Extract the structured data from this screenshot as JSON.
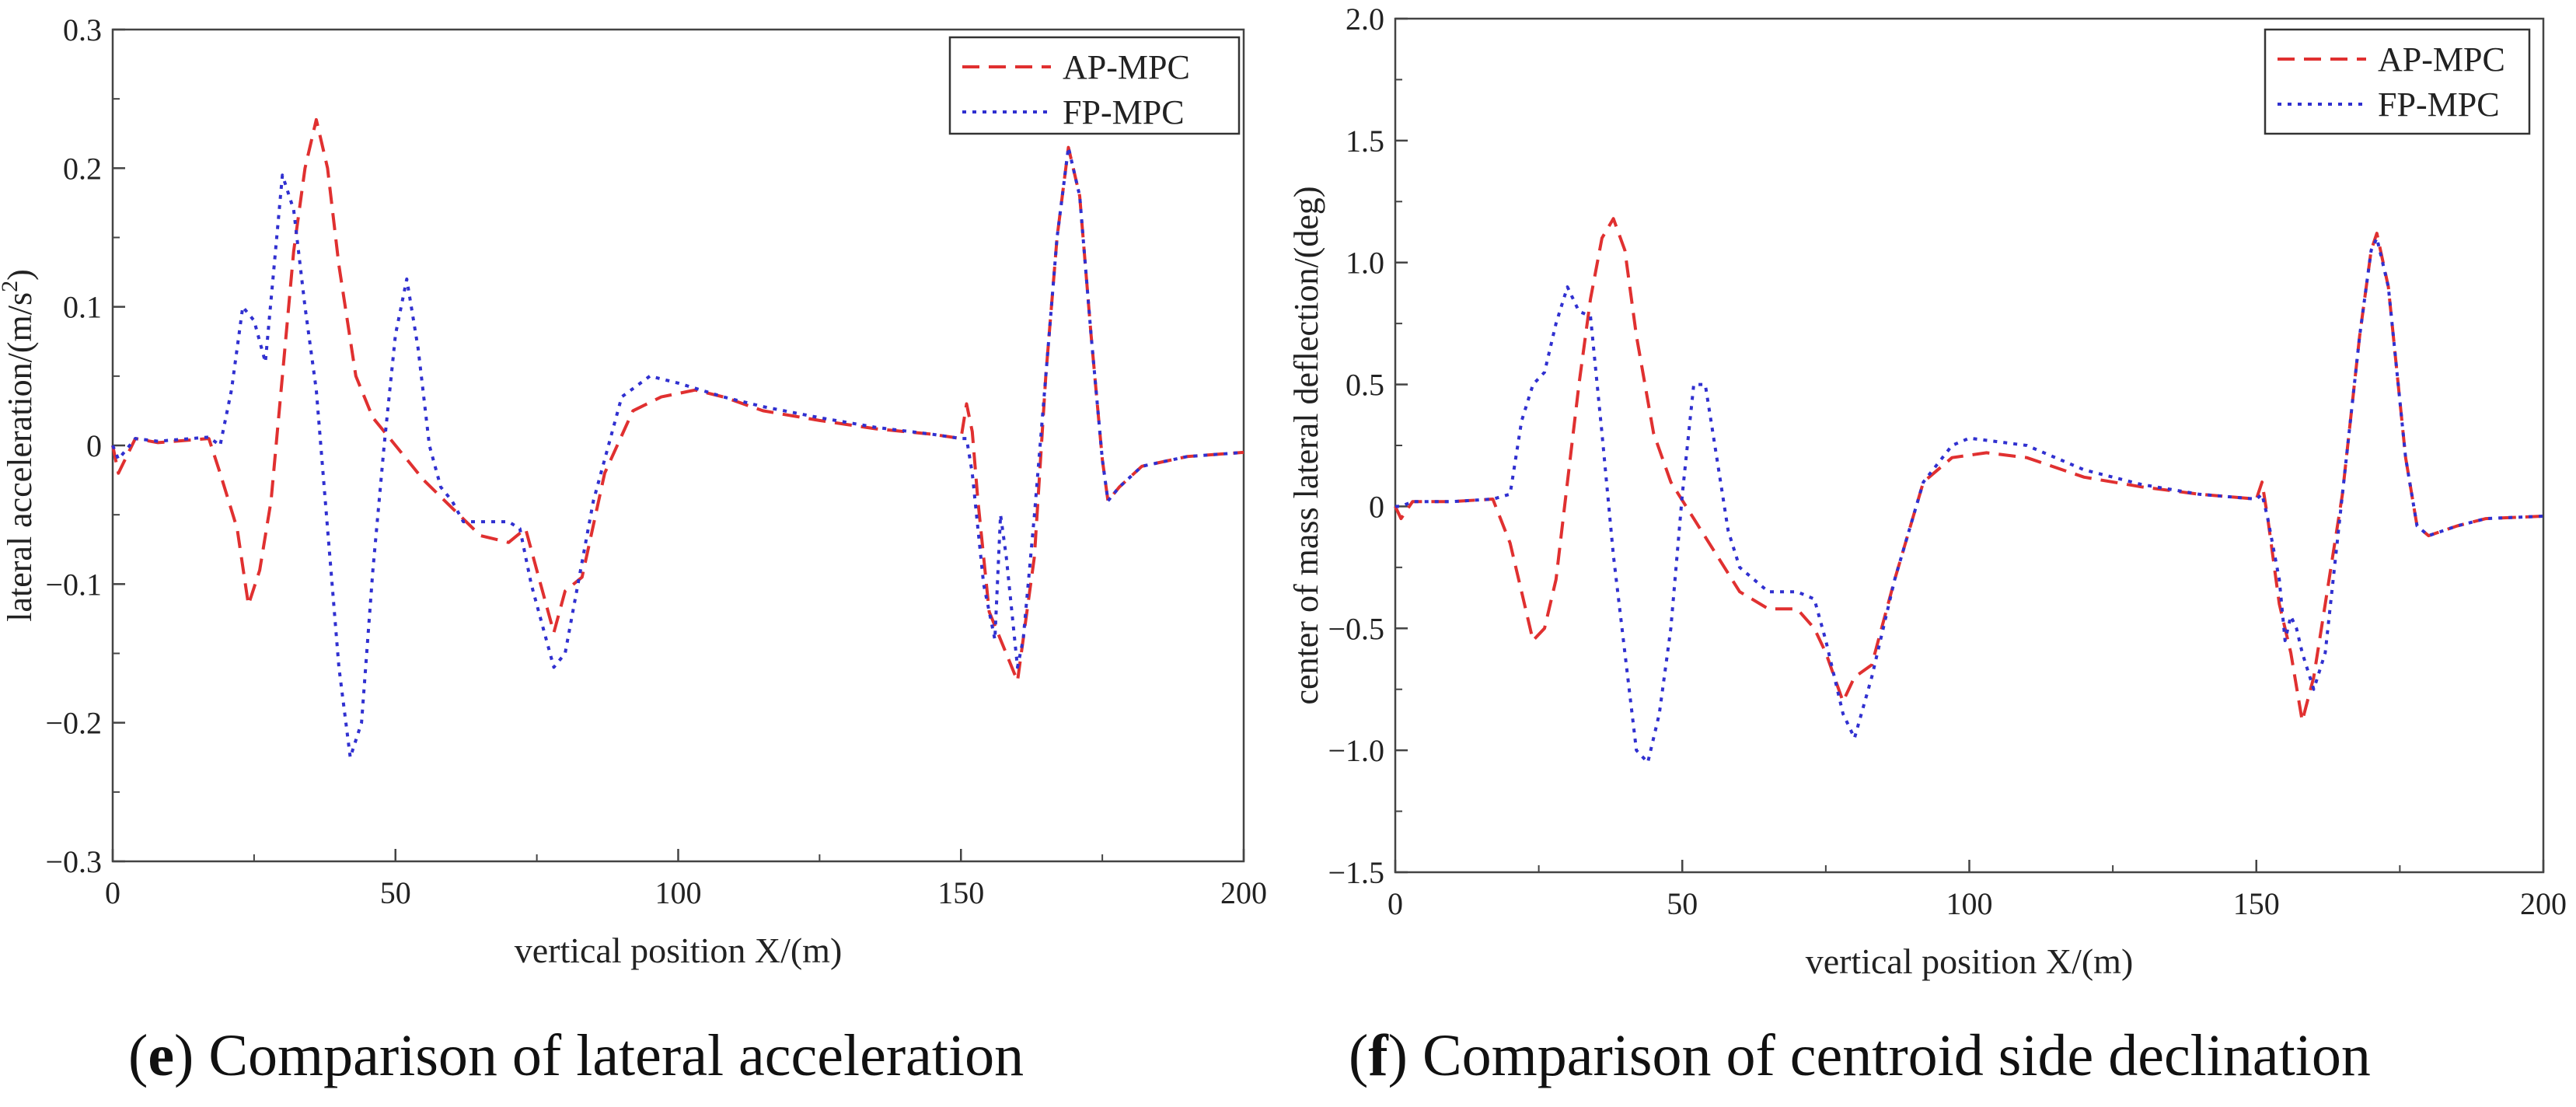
{
  "chart_data": [
    {
      "type": "line",
      "panel_letter": "e",
      "caption": "Comparison of lateral acceleration",
      "xlabel": "vertical position X/(m)",
      "ylabel_main": "lateral acceleration/(m/s",
      "ylabel_sup": "2",
      "ylabel_end": ")",
      "xlim": [
        0,
        200
      ],
      "ylim": [
        -0.3,
        0.3
      ],
      "xticks": [
        0,
        50,
        100,
        150,
        200
      ],
      "xtick_labels": [
        "0",
        "50",
        "100",
        "150",
        "200"
      ],
      "yticks": [
        -0.3,
        -0.2,
        -0.1,
        0,
        0.1,
        0.2,
        0.3
      ],
      "ytick_labels": [
        "−0.3",
        "−0.2",
        "−0.1",
        "0",
        "0.1",
        "0.2",
        "0.3"
      ],
      "grid": false,
      "legend": "top-right",
      "series": [
        {
          "name": "AP-MPC",
          "color": "#e03030",
          "dash": "dashed",
          "x": [
            0,
            1,
            4,
            8,
            17,
            19,
            22,
            24,
            26,
            28,
            30,
            32,
            34,
            36,
            38,
            40,
            43,
            46,
            50,
            55,
            60,
            65,
            70,
            73,
            75,
            78,
            80,
            83,
            87,
            92,
            97,
            103,
            108,
            115,
            125,
            135,
            145,
            150,
            151,
            152,
            153,
            155,
            157,
            160,
            163,
            165,
            167,
            169,
            171,
            173,
            175,
            176,
            178,
            182,
            190,
            200
          ],
          "y": [
            0,
            -0.02,
            0.005,
            0.002,
            0.005,
            -0.02,
            -0.06,
            -0.115,
            -0.09,
            -0.04,
            0.05,
            0.14,
            0.2,
            0.235,
            0.2,
            0.13,
            0.05,
            0.02,
            0.0,
            -0.025,
            -0.045,
            -0.065,
            -0.07,
            -0.06,
            -0.09,
            -0.135,
            -0.105,
            -0.095,
            -0.02,
            0.025,
            0.035,
            0.04,
            0.035,
            0.025,
            0.018,
            0.012,
            0.008,
            0.005,
            0.03,
            0.01,
            -0.04,
            -0.12,
            -0.14,
            -0.17,
            -0.08,
            0.05,
            0.15,
            0.215,
            0.18,
            0.08,
            -0.01,
            -0.04,
            -0.03,
            -0.015,
            -0.008,
            -0.005
          ]
        },
        {
          "name": "FP-MPC",
          "color": "#3030d0",
          "dash": "dotted",
          "x": [
            0,
            1,
            4,
            8,
            17,
            19,
            21,
            23,
            25,
            27,
            29,
            30,
            32,
            34,
            36,
            38,
            40,
            42,
            44,
            46,
            48,
            50,
            52,
            54,
            56,
            58,
            60,
            62,
            65,
            70,
            72,
            74,
            76,
            78,
            80,
            85,
            90,
            95,
            100,
            108,
            115,
            125,
            135,
            145,
            150,
            151,
            152,
            154,
            156,
            157,
            158,
            160,
            161,
            163,
            165,
            167,
            169,
            171,
            173,
            175,
            176,
            178,
            182,
            190,
            200
          ],
          "y": [
            0,
            -0.01,
            0.005,
            0.003,
            0.006,
            0.0,
            0.04,
            0.1,
            0.09,
            0.06,
            0.15,
            0.195,
            0.17,
            0.1,
            0.04,
            -0.06,
            -0.16,
            -0.225,
            -0.2,
            -0.09,
            0.0,
            0.08,
            0.12,
            0.07,
            0.0,
            -0.03,
            -0.04,
            -0.055,
            -0.055,
            -0.055,
            -0.06,
            -0.1,
            -0.13,
            -0.16,
            -0.15,
            -0.04,
            0.035,
            0.05,
            0.045,
            0.035,
            0.028,
            0.02,
            0.013,
            0.008,
            0.005,
            0.005,
            -0.02,
            -0.1,
            -0.14,
            -0.05,
            -0.08,
            -0.16,
            -0.14,
            -0.05,
            0.05,
            0.15,
            0.215,
            0.18,
            0.08,
            -0.01,
            -0.04,
            -0.03,
            -0.015,
            -0.008,
            -0.005
          ]
        }
      ]
    },
    {
      "type": "line",
      "panel_letter": "f",
      "caption": "Comparison of centroid side declination",
      "xlabel": "vertical position X/(m)",
      "ylabel_main": "center of mass lateral deflection/(deg)",
      "ylabel_sup": "",
      "ylabel_end": "",
      "xlim": [
        0,
        200
      ],
      "ylim": [
        -1.5,
        2.0
      ],
      "xticks": [
        0,
        50,
        100,
        150,
        200
      ],
      "xtick_labels": [
        "0",
        "50",
        "100",
        "150",
        "200"
      ],
      "yticks": [
        -1.5,
        -1.0,
        -0.5,
        0,
        0.5,
        1.0,
        1.5,
        2.0
      ],
      "ytick_labels": [
        "−1.5",
        "−1.0",
        "−0.5",
        "0",
        "0.5",
        "1.0",
        "1.5",
        "2.0"
      ],
      "grid": false,
      "legend": "top-right",
      "series": [
        {
          "name": "AP-MPC",
          "color": "#e03030",
          "dash": "dashed",
          "x": [
            0,
            1,
            3,
            10,
            17,
            20,
            22,
            24,
            26,
            28,
            30,
            32,
            34,
            36,
            38,
            40,
            42,
            45,
            48,
            52,
            56,
            60,
            65,
            70,
            73,
            75,
            78,
            80,
            83,
            87,
            92,
            97,
            103,
            110,
            120,
            130,
            140,
            150,
            151,
            152,
            154,
            156,
            158,
            160,
            162,
            165,
            168,
            170,
            171,
            173,
            176,
            178,
            180,
            185,
            190,
            200
          ],
          "y": [
            0,
            -0.05,
            0.02,
            0.02,
            0.03,
            -0.15,
            -0.35,
            -0.55,
            -0.5,
            -0.3,
            0.1,
            0.5,
            0.85,
            1.1,
            1.18,
            1.05,
            0.7,
            0.3,
            0.1,
            -0.05,
            -0.2,
            -0.35,
            -0.42,
            -0.42,
            -0.5,
            -0.6,
            -0.8,
            -0.7,
            -0.65,
            -0.3,
            0.1,
            0.2,
            0.22,
            0.2,
            0.12,
            0.08,
            0.05,
            0.03,
            0.1,
            -0.05,
            -0.4,
            -0.6,
            -0.88,
            -0.7,
            -0.4,
            0.05,
            0.7,
            1.05,
            1.12,
            0.9,
            0.2,
            -0.08,
            -0.12,
            -0.08,
            -0.05,
            -0.04
          ]
        },
        {
          "name": "FP-MPC",
          "color": "#3030d0",
          "dash": "dotted",
          "x": [
            0,
            1,
            3,
            10,
            17,
            20,
            22,
            24,
            26,
            28,
            30,
            32,
            34,
            36,
            38,
            40,
            42,
            44,
            46,
            48,
            50,
            52,
            54,
            56,
            58,
            60,
            65,
            70,
            73,
            75,
            78,
            80,
            83,
            87,
            92,
            97,
            100,
            110,
            120,
            130,
            140,
            150,
            151,
            152,
            154,
            155,
            156,
            157,
            158,
            160,
            162,
            165,
            168,
            170,
            171,
            173,
            176,
            178,
            180,
            185,
            190,
            200
          ],
          "y": [
            0,
            0.0,
            0.02,
            0.02,
            0.03,
            0.05,
            0.35,
            0.5,
            0.55,
            0.75,
            0.9,
            0.8,
            0.78,
            0.3,
            -0.2,
            -0.6,
            -1.0,
            -1.05,
            -0.85,
            -0.5,
            0.05,
            0.5,
            0.5,
            0.2,
            -0.1,
            -0.25,
            -0.35,
            -0.35,
            -0.38,
            -0.55,
            -0.85,
            -0.95,
            -0.7,
            -0.3,
            0.1,
            0.25,
            0.28,
            0.25,
            0.15,
            0.09,
            0.05,
            0.03,
            0.05,
            -0.05,
            -0.3,
            -0.55,
            -0.45,
            -0.5,
            -0.6,
            -0.75,
            -0.6,
            0.05,
            0.7,
            1.05,
            1.1,
            0.9,
            0.2,
            -0.08,
            -0.12,
            -0.08,
            -0.05,
            -0.04
          ]
        }
      ]
    }
  ]
}
